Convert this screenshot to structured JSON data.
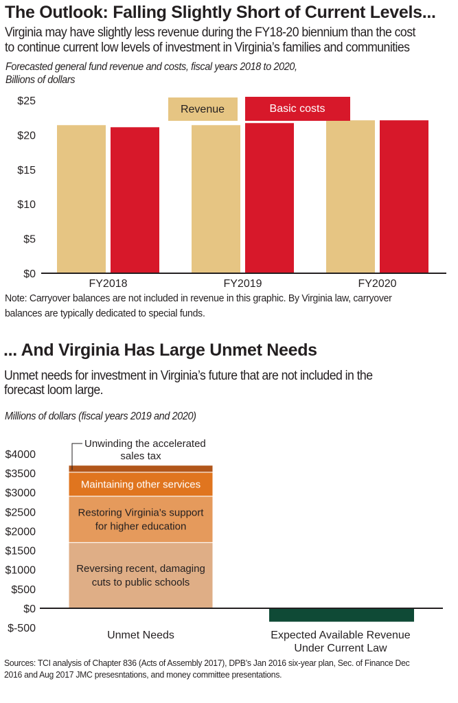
{
  "header": {
    "title": "The Outlook: Falling Slightly Short of Current Levels...",
    "subtitle_line1": "Virginia may have slightly less revenue during the FY18-20 biennium than the cost",
    "subtitle_line2": "to continue current low levels of investment in Virginia’s families and communities",
    "chart_caption_line1": "Forecasted general fund revenue and costs, fiscal years 2018 to 2020,",
    "chart_caption_line2": "Billions of dollars"
  },
  "note_line1": "Note: Carryover balances are not included in revenue in this graphic. By Virginia law, carryover",
  "note_line2": "balances are typically dedicated to special funds.",
  "section2": {
    "title": "... And Virginia Has Large Unmet Needs",
    "subtitle_line1": "Unmet needs for investment in Virginia’s future that are not included in the",
    "subtitle_line2": "forecast loom large.",
    "caption": "Millions of dollars (fiscal years 2019 and 2020)"
  },
  "sources_line1": "Sources: TCI analysis of Chapter 836 (Acts of Assembly 2017), DPB’s Jan 2016 six-year plan, Sec. of Finance Dec",
  "sources_line2": "2016 and Aug 2017 JMC presesntations, and money committee presentations.",
  "colors": {
    "revenue": "#e6c583",
    "costs": "#d7182a",
    "schools": "#dfae86",
    "higher_ed": "#e59a5c",
    "other_services": "#e0751f",
    "sales_tax": "#b1561a",
    "expected_revenue": "#0f4a36",
    "text": "#231f20"
  },
  "chart_data": [
    {
      "type": "bar",
      "title": "Forecasted general fund revenue and costs, fiscal years 2018 to 2020",
      "ylabel": "Billions of dollars",
      "categories": [
        "FY2018",
        "FY2019",
        "FY2020"
      ],
      "series": [
        {
          "name": "Revenue",
          "values": [
            21.4,
            21.4,
            22.1
          ]
        },
        {
          "name": "Basic costs",
          "values": [
            21.1,
            21.7,
            22.1
          ]
        }
      ],
      "ylim": [
        0,
        25
      ],
      "yticks": [
        0,
        5,
        10,
        15,
        20,
        25
      ],
      "ytick_labels": [
        "$0",
        "$5",
        "$10",
        "$15",
        "$20",
        "$25"
      ],
      "legend": "top-center",
      "grid": false
    },
    {
      "type": "bar",
      "stacked": true,
      "title": "Millions of dollars (fiscal years 2019 and 2020)",
      "categories": [
        "Unmet Needs",
        "Expected Available Revenue Under Current Law"
      ],
      "category_labels": [
        [
          "Unmet Needs"
        ],
        [
          "Expected Available Revenue",
          "Under Current Law"
        ]
      ],
      "series": [
        {
          "name": "Reversing recent, damaging cuts to public schools",
          "label_lines": [
            "Reversing recent, damaging",
            "cuts to public schools"
          ],
          "values": [
            1700,
            0
          ]
        },
        {
          "name": "Restoring Virginia’s support for higher education",
          "label_lines": [
            "Restoring Virginia’s support",
            "for higher education"
          ],
          "values": [
            1200,
            0
          ]
        },
        {
          "name": "Maintaining other services",
          "label_lines": [
            "Maintaining other services"
          ],
          "values": [
            620,
            0
          ]
        },
        {
          "name": "Unwinding the accelerated sales tax",
          "label_lines": [
            "Unwinding the accelerated",
            "sales tax"
          ],
          "values": [
            180,
            0
          ]
        },
        {
          "name": "Expected Available Revenue Under Current Law",
          "values": [
            0,
            -330
          ]
        }
      ],
      "ylim": [
        -500,
        4000
      ],
      "yticks": [
        -500,
        0,
        500,
        1000,
        1500,
        2000,
        2500,
        3000,
        3500,
        4000
      ],
      "ytick_labels": [
        "$-500",
        "$0",
        "$500",
        "$1000",
        "$1500",
        "$2000",
        "$2500",
        "$3000",
        "$3500",
        "$4000"
      ],
      "grid": false
    }
  ]
}
